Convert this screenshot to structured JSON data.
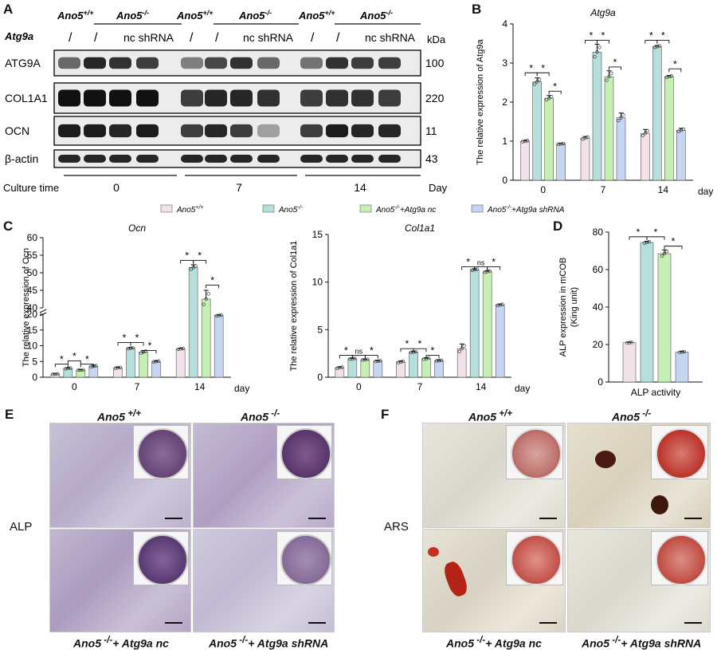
{
  "panelA": {
    "label": "A",
    "groups": [
      {
        "wt": "Ano5",
        "wt_sup": "+/+",
        "ko": "Ano5",
        "ko_sup": "-/-"
      },
      {
        "wt": "Ano5",
        "wt_sup": "+/+",
        "ko": "Ano5",
        "ko_sup": "-/-"
      },
      {
        "wt": "Ano5",
        "wt_sup": "+/+",
        "ko": "Ano5",
        "ko_sup": "-/-"
      }
    ],
    "atg9a_label": "Atg9a",
    "slash": "/",
    "nc_shrna": "nc shRNA",
    "kda_label": "kDa",
    "bands": [
      {
        "name": "ATG9A",
        "kda": "100"
      },
      {
        "name": "COL1A1",
        "kda": "220"
      },
      {
        "name": "OCN",
        "kda": "11"
      },
      {
        "name": "β-actin",
        "kda": "43"
      }
    ],
    "culture_time_label": "Culture time",
    "times": [
      "0",
      "7",
      "14"
    ],
    "day_label": "Day"
  },
  "legend": {
    "items": [
      {
        "name": "Ano5",
        "sup": "+/+",
        "rest": "",
        "color": "#f3e1ea"
      },
      {
        "name": "Ano5",
        "sup": "-/-",
        "rest": "",
        "color": "#b6dedb"
      },
      {
        "name": "Ano5",
        "sup": "-/-",
        "rest": "+Atg9a nc",
        "color": "#c6efb4"
      },
      {
        "name": "Ano5",
        "sup": "-/-",
        "rest": "+Atg9a shRNA",
        "color": "#c5d5f2"
      }
    ]
  },
  "captions": {
    "E": {
      "label": "E",
      "top_left": "Ano5",
      "top_left_sup": " +/+",
      "top_right": "Ano5",
      "top_right_sup": " -/-",
      "bot_left": "Ano5",
      "bot_left_sup": " -/-",
      "bot_left_rest": "+ Atg9a nc",
      "bot_right": "Ano5",
      "bot_right_sup": " -/-",
      "bot_right_rest": "+ Atg9a shRNA",
      "side": "ALP"
    },
    "F": {
      "label": "F",
      "top_left": "Ano5",
      "top_left_sup": " +/+",
      "top_right": "Ano5",
      "top_right_sup": " -/-",
      "bot_left": "Ano5",
      "bot_left_sup": " -/-",
      "bot_left_rest": "+ Atg9a nc",
      "bot_right": "Ano5",
      "bot_right_sup": " -/-",
      "bot_right_rest": "+ Atg9a shRNA",
      "side": "ARS"
    }
  },
  "colors": {
    "wt": "#f3e1ea",
    "ko": "#b6dedb",
    "nc": "#c6efb4",
    "sh": "#c5d5f2"
  },
  "chart_data": [
    {
      "id": "B",
      "label": "B",
      "type": "bar",
      "title": "Atg9a",
      "ylabel": "The relative expression of Atg9a",
      "xlabel": "day",
      "categories": [
        "0",
        "7",
        "14"
      ],
      "ylim": [
        0,
        4
      ],
      "yticks": [
        0,
        1,
        2,
        3,
        4
      ],
      "series": [
        {
          "values": [
            1.0,
            1.08,
            1.2
          ],
          "err": [
            0.02,
            0.04,
            0.1
          ]
        },
        {
          "values": [
            2.52,
            3.28,
            3.42
          ],
          "err": [
            0.1,
            0.2,
            0.03
          ]
        },
        {
          "values": [
            2.1,
            2.65,
            2.65
          ],
          "err": [
            0.07,
            0.15,
            0.03
          ]
        },
        {
          "values": [
            0.93,
            1.6,
            1.28
          ],
          "err": [
            0.01,
            0.12,
            0.05
          ]
        }
      ],
      "annotations": [
        {
          "cat": 0,
          "from": 0,
          "to": 1,
          "text": "*",
          "y": 2.75
        },
        {
          "cat": 0,
          "from": 1,
          "to": 2,
          "text": "*",
          "y": 2.75
        },
        {
          "cat": 0,
          "from": 2,
          "to": 3,
          "text": "*",
          "y": 2.28
        },
        {
          "cat": 1,
          "from": 0,
          "to": 1,
          "text": "*",
          "y": 3.58
        },
        {
          "cat": 1,
          "from": 1,
          "to": 2,
          "text": "*",
          "y": 3.58
        },
        {
          "cat": 1,
          "from": 2,
          "to": 3,
          "text": "*",
          "y": 2.9
        },
        {
          "cat": 2,
          "from": 0,
          "to": 1,
          "text": "*",
          "y": 3.58
        },
        {
          "cat": 2,
          "from": 1,
          "to": 2,
          "text": "*",
          "y": 3.58
        },
        {
          "cat": 2,
          "from": 2,
          "to": 3,
          "text": "*",
          "y": 2.85
        }
      ]
    },
    {
      "id": "C1",
      "label": "C",
      "type": "bar",
      "title": "Ocn",
      "ylabel": "The relative expression of Ocn",
      "xlabel": "day",
      "categories": [
        "0",
        "7",
        "14"
      ],
      "ylim": [
        0,
        60
      ],
      "y_break": [
        20,
        40
      ],
      "yticks": [
        0,
        5,
        10,
        15,
        20,
        40,
        45,
        50,
        55,
        60
      ],
      "series": [
        {
          "values": [
            1.0,
            3.0,
            9.0
          ],
          "err": [
            0.1,
            0.2,
            0.2
          ]
        },
        {
          "values": [
            2.8,
            9.2,
            51.5
          ],
          "err": [
            0.2,
            0.2,
            0.8
          ]
        },
        {
          "values": [
            2.3,
            8.0,
            42.5
          ],
          "err": [
            0.1,
            0.5,
            2.5
          ]
        },
        {
          "values": [
            3.5,
            5.0,
            19.6
          ],
          "err": [
            0.3,
            0.2,
            0.2
          ]
        }
      ],
      "annotations": [
        {
          "cat": 0,
          "from": 0,
          "to": 1,
          "text": "*",
          "y": 4.2
        },
        {
          "cat": 0,
          "from": 1,
          "to": 2,
          "text": "*",
          "y": 5.2
        },
        {
          "cat": 0,
          "from": 2,
          "to": 3,
          "text": "*",
          "y": 4.2
        },
        {
          "cat": 1,
          "from": 0,
          "to": 1,
          "text": "*",
          "y": 11
        },
        {
          "cat": 1,
          "from": 1,
          "to": 2,
          "text": "*",
          "y": 11
        },
        {
          "cat": 1,
          "from": 2,
          "to": 3,
          "text": "*",
          "y": 8.5
        },
        {
          "cat": 2,
          "from": 0,
          "to": 1,
          "text": "*",
          "y": 53.5
        },
        {
          "cat": 2,
          "from": 1,
          "to": 2,
          "text": "*",
          "y": 53.5
        },
        {
          "cat": 2,
          "from": 2,
          "to": 3,
          "text": "*",
          "y": 46.5
        }
      ]
    },
    {
      "id": "C2",
      "label": "",
      "type": "bar",
      "title": "Col1a1",
      "ylabel": "The relative expression of Col1a1",
      "xlabel": "day",
      "categories": [
        "0",
        "7",
        "14"
      ],
      "ylim": [
        0,
        15
      ],
      "yticks": [
        0,
        5,
        10,
        15
      ],
      "series": [
        {
          "values": [
            1.0,
            1.6,
            3.0
          ],
          "err": [
            0.1,
            0.1,
            0.5
          ]
        },
        {
          "values": [
            1.95,
            2.65,
            11.3
          ],
          "err": [
            0.05,
            0.05,
            0.1
          ]
        },
        {
          "values": [
            1.85,
            1.95,
            11.1
          ],
          "err": [
            0.05,
            0.1,
            0.1
          ]
        },
        {
          "values": [
            1.7,
            1.75,
            7.6
          ],
          "err": [
            0.05,
            0.05,
            0.1
          ]
        }
      ],
      "annotations": [
        {
          "cat": 0,
          "from": 0,
          "to": 1,
          "text": "*",
          "y": 2.3
        },
        {
          "cat": 0,
          "from": 1,
          "to": 2,
          "text": "ns",
          "y": 2.3
        },
        {
          "cat": 0,
          "from": 2,
          "to": 3,
          "text": "*",
          "y": 2.3
        },
        {
          "cat": 1,
          "from": 0,
          "to": 1,
          "text": "*",
          "y": 3.0
        },
        {
          "cat": 1,
          "from": 1,
          "to": 2,
          "text": "*",
          "y": 3.0
        },
        {
          "cat": 1,
          "from": 2,
          "to": 3,
          "text": "*",
          "y": 2.3
        },
        {
          "cat": 2,
          "from": 0,
          "to": 1,
          "text": "*",
          "y": 11.6
        },
        {
          "cat": 2,
          "from": 1,
          "to": 2,
          "text": "ns",
          "y": 11.6
        },
        {
          "cat": 2,
          "from": 2,
          "to": 3,
          "text": "*",
          "y": 11.6
        }
      ]
    },
    {
      "id": "D",
      "label": "D",
      "type": "bar",
      "title": "",
      "ylabel": "ALP expression in mCOB",
      "ylabel2": "(King unit)",
      "xlabel": "ALP activity",
      "categories": [
        ""
      ],
      "ylim": [
        0,
        80
      ],
      "yticks": [
        0,
        20,
        40,
        60,
        80
      ],
      "series": [
        {
          "values": [
            21
          ],
          "err": [
            0.3
          ]
        },
        {
          "values": [
            74.5
          ],
          "err": [
            0.6
          ]
        },
        {
          "values": [
            68.5
          ],
          "err": [
            2.0
          ]
        },
        {
          "values": [
            16
          ],
          "err": [
            0.3
          ]
        }
      ],
      "annotations": [
        {
          "cat": 0,
          "from": 0,
          "to": 1,
          "text": "*",
          "y": 77.5
        },
        {
          "cat": 0,
          "from": 1,
          "to": 2,
          "text": "*",
          "y": 77.5
        },
        {
          "cat": 0,
          "from": 2,
          "to": 3,
          "text": "*",
          "y": 72.5
        }
      ]
    }
  ]
}
